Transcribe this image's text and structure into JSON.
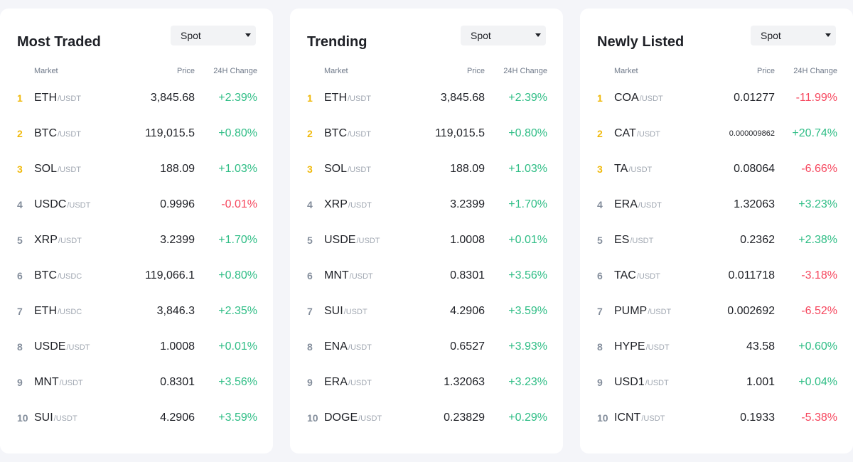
{
  "colors": {
    "up": "#2ebd85",
    "down": "#f6465d",
    "rank_top": "#f0b90b"
  },
  "columns": {
    "market": "Market",
    "price": "Price",
    "change": "24H Change"
  },
  "panels": [
    {
      "title": "Most Traded",
      "filter": "Spot",
      "rows": [
        {
          "rank": "1",
          "base": "ETH",
          "quote": "/USDT",
          "price": "3,845.68",
          "change": "+2.39%",
          "dir": "up"
        },
        {
          "rank": "2",
          "base": "BTC",
          "quote": "/USDT",
          "price": "119,015.5",
          "change": "+0.80%",
          "dir": "up"
        },
        {
          "rank": "3",
          "base": "SOL",
          "quote": "/USDT",
          "price": "188.09",
          "change": "+1.03%",
          "dir": "up"
        },
        {
          "rank": "4",
          "base": "USDC",
          "quote": "/USDT",
          "price": "0.9996",
          "change": "-0.01%",
          "dir": "down"
        },
        {
          "rank": "5",
          "base": "XRP",
          "quote": "/USDT",
          "price": "3.2399",
          "change": "+1.70%",
          "dir": "up"
        },
        {
          "rank": "6",
          "base": "BTC",
          "quote": "/USDC",
          "price": "119,066.1",
          "change": "+0.80%",
          "dir": "up"
        },
        {
          "rank": "7",
          "base": "ETH",
          "quote": "/USDC",
          "price": "3,846.3",
          "change": "+2.35%",
          "dir": "up"
        },
        {
          "rank": "8",
          "base": "USDE",
          "quote": "/USDT",
          "price": "1.0008",
          "change": "+0.01%",
          "dir": "up"
        },
        {
          "rank": "9",
          "base": "MNT",
          "quote": "/USDT",
          "price": "0.8301",
          "change": "+3.56%",
          "dir": "up"
        },
        {
          "rank": "10",
          "base": "SUI",
          "quote": "/USDT",
          "price": "4.2906",
          "change": "+3.59%",
          "dir": "up"
        }
      ]
    },
    {
      "title": "Trending",
      "filter": "Spot",
      "rows": [
        {
          "rank": "1",
          "base": "ETH",
          "quote": "/USDT",
          "price": "3,845.68",
          "change": "+2.39%",
          "dir": "up"
        },
        {
          "rank": "2",
          "base": "BTC",
          "quote": "/USDT",
          "price": "119,015.5",
          "change": "+0.80%",
          "dir": "up"
        },
        {
          "rank": "3",
          "base": "SOL",
          "quote": "/USDT",
          "price": "188.09",
          "change": "+1.03%",
          "dir": "up"
        },
        {
          "rank": "4",
          "base": "XRP",
          "quote": "/USDT",
          "price": "3.2399",
          "change": "+1.70%",
          "dir": "up"
        },
        {
          "rank": "5",
          "base": "USDE",
          "quote": "/USDT",
          "price": "1.0008",
          "change": "+0.01%",
          "dir": "up"
        },
        {
          "rank": "6",
          "base": "MNT",
          "quote": "/USDT",
          "price": "0.8301",
          "change": "+3.56%",
          "dir": "up"
        },
        {
          "rank": "7",
          "base": "SUI",
          "quote": "/USDT",
          "price": "4.2906",
          "change": "+3.59%",
          "dir": "up"
        },
        {
          "rank": "8",
          "base": "ENA",
          "quote": "/USDT",
          "price": "0.6527",
          "change": "+3.93%",
          "dir": "up"
        },
        {
          "rank": "9",
          "base": "ERA",
          "quote": "/USDT",
          "price": "1.32063",
          "change": "+3.23%",
          "dir": "up"
        },
        {
          "rank": "10",
          "base": "DOGE",
          "quote": "/USDT",
          "price": "0.23829",
          "change": "+0.29%",
          "dir": "up"
        }
      ]
    },
    {
      "title": "Newly Listed",
      "filter": "Spot",
      "rows": [
        {
          "rank": "1",
          "base": "COA",
          "quote": "/USDT",
          "price": "0.01277",
          "change": "-11.99%",
          "dir": "down"
        },
        {
          "rank": "2",
          "base": "CAT",
          "quote": "/USDT",
          "price": "0.000009862",
          "change": "+20.74%",
          "dir": "up"
        },
        {
          "rank": "3",
          "base": "TA",
          "quote": "/USDT",
          "price": "0.08064",
          "change": "-6.66%",
          "dir": "down"
        },
        {
          "rank": "4",
          "base": "ERA",
          "quote": "/USDT",
          "price": "1.32063",
          "change": "+3.23%",
          "dir": "up"
        },
        {
          "rank": "5",
          "base": "ES",
          "quote": "/USDT",
          "price": "0.2362",
          "change": "+2.38%",
          "dir": "up"
        },
        {
          "rank": "6",
          "base": "TAC",
          "quote": "/USDT",
          "price": "0.011718",
          "change": "-3.18%",
          "dir": "down"
        },
        {
          "rank": "7",
          "base": "PUMP",
          "quote": "/USDT",
          "price": "0.002692",
          "change": "-6.52%",
          "dir": "down"
        },
        {
          "rank": "8",
          "base": "HYPE",
          "quote": "/USDT",
          "price": "43.58",
          "change": "+0.60%",
          "dir": "up"
        },
        {
          "rank": "9",
          "base": "USD1",
          "quote": "/USDT",
          "price": "1.001",
          "change": "+0.04%",
          "dir": "up"
        },
        {
          "rank": "10",
          "base": "ICNT",
          "quote": "/USDT",
          "price": "0.1933",
          "change": "-5.38%",
          "dir": "down"
        }
      ]
    }
  ]
}
